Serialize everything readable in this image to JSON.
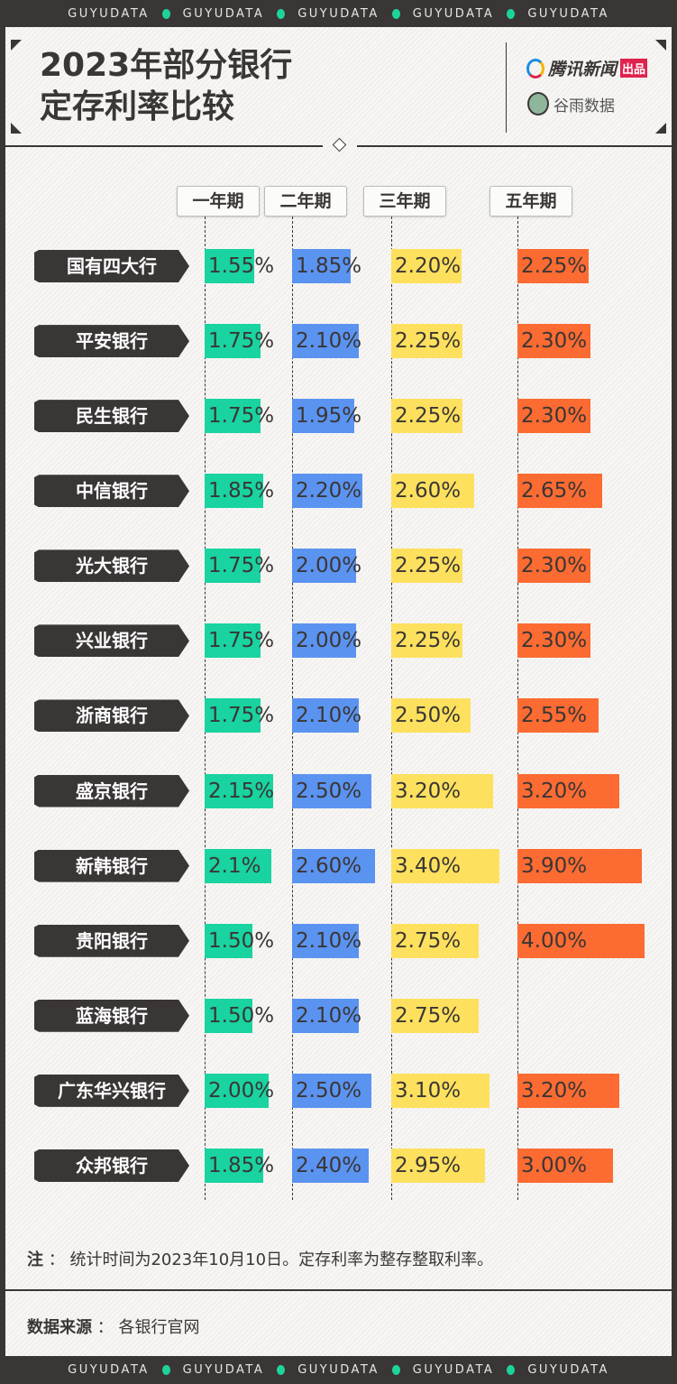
{
  "brand_band": "GUYUDATA",
  "title_line1": "2023年部分银行",
  "title_line2": "定存利率比较",
  "logos": {
    "tencent": "腾讯新闻",
    "tencent_badge": "出品",
    "guyu": "谷雨数据"
  },
  "colors": {
    "1y": "#19d3a0",
    "2y": "#5b93f0",
    "3y": "#fde05e",
    "5y": "#fb6b32",
    "dark": "#3a3635"
  },
  "chart_data": {
    "type": "bar",
    "columns": [
      "一年期",
      "二年期",
      "三年期",
      "五年期"
    ],
    "categories": [
      "国有四大行",
      "平安银行",
      "民生银行",
      "中信银行",
      "光大银行",
      "兴业银行",
      "浙商银行",
      "盛京银行",
      "新韩银行",
      "贵阳银行",
      "蓝海银行",
      "广东华兴银行",
      "众邦银行"
    ],
    "series": [
      {
        "name": "一年期",
        "values": [
          1.55,
          1.75,
          1.75,
          1.85,
          1.75,
          1.75,
          1.75,
          2.15,
          2.1,
          1.5,
          1.5,
          2.0,
          1.85
        ],
        "labels": [
          "1.55%",
          "1.75%",
          "1.75%",
          "1.85%",
          "1.75%",
          "1.75%",
          "1.75%",
          "2.15%",
          "2.1%",
          "1.50%",
          "1.50%",
          "2.00%",
          "1.85%"
        ]
      },
      {
        "name": "二年期",
        "values": [
          1.85,
          2.1,
          1.95,
          2.2,
          2.0,
          2.0,
          2.1,
          2.5,
          2.6,
          2.1,
          2.1,
          2.5,
          2.4
        ],
        "labels": [
          "1.85%",
          "2.10%",
          "1.95%",
          "2.20%",
          "2.00%",
          "2.00%",
          "2.10%",
          "2.50%",
          "2.60%",
          "2.10%",
          "2.10%",
          "2.50%",
          "2.40%"
        ]
      },
      {
        "name": "三年期",
        "values": [
          2.2,
          2.25,
          2.25,
          2.6,
          2.25,
          2.25,
          2.5,
          3.2,
          3.4,
          2.75,
          2.75,
          3.1,
          2.95
        ],
        "labels": [
          "2.20%",
          "2.25%",
          "2.25%",
          "2.60%",
          "2.25%",
          "2.25%",
          "2.50%",
          "3.20%",
          "3.40%",
          "2.75%",
          "2.75%",
          "3.10%",
          "2.95%"
        ]
      },
      {
        "name": "五年期",
        "values": [
          2.25,
          2.3,
          2.3,
          2.65,
          2.3,
          2.3,
          2.55,
          3.2,
          3.9,
          4.0,
          null,
          3.2,
          3.0
        ],
        "labels": [
          "2.25%",
          "2.30%",
          "2.30%",
          "2.65%",
          "2.30%",
          "2.30%",
          "2.55%",
          "3.20%",
          "3.90%",
          "4.00%",
          "",
          "3.20%",
          "3.00%"
        ]
      }
    ]
  },
  "note": {
    "label": "注",
    "text": "统计时间为2023年10月10日。定存利率为整存整取利率。"
  },
  "source": {
    "label": "数据来源",
    "text": "各银行官网"
  }
}
